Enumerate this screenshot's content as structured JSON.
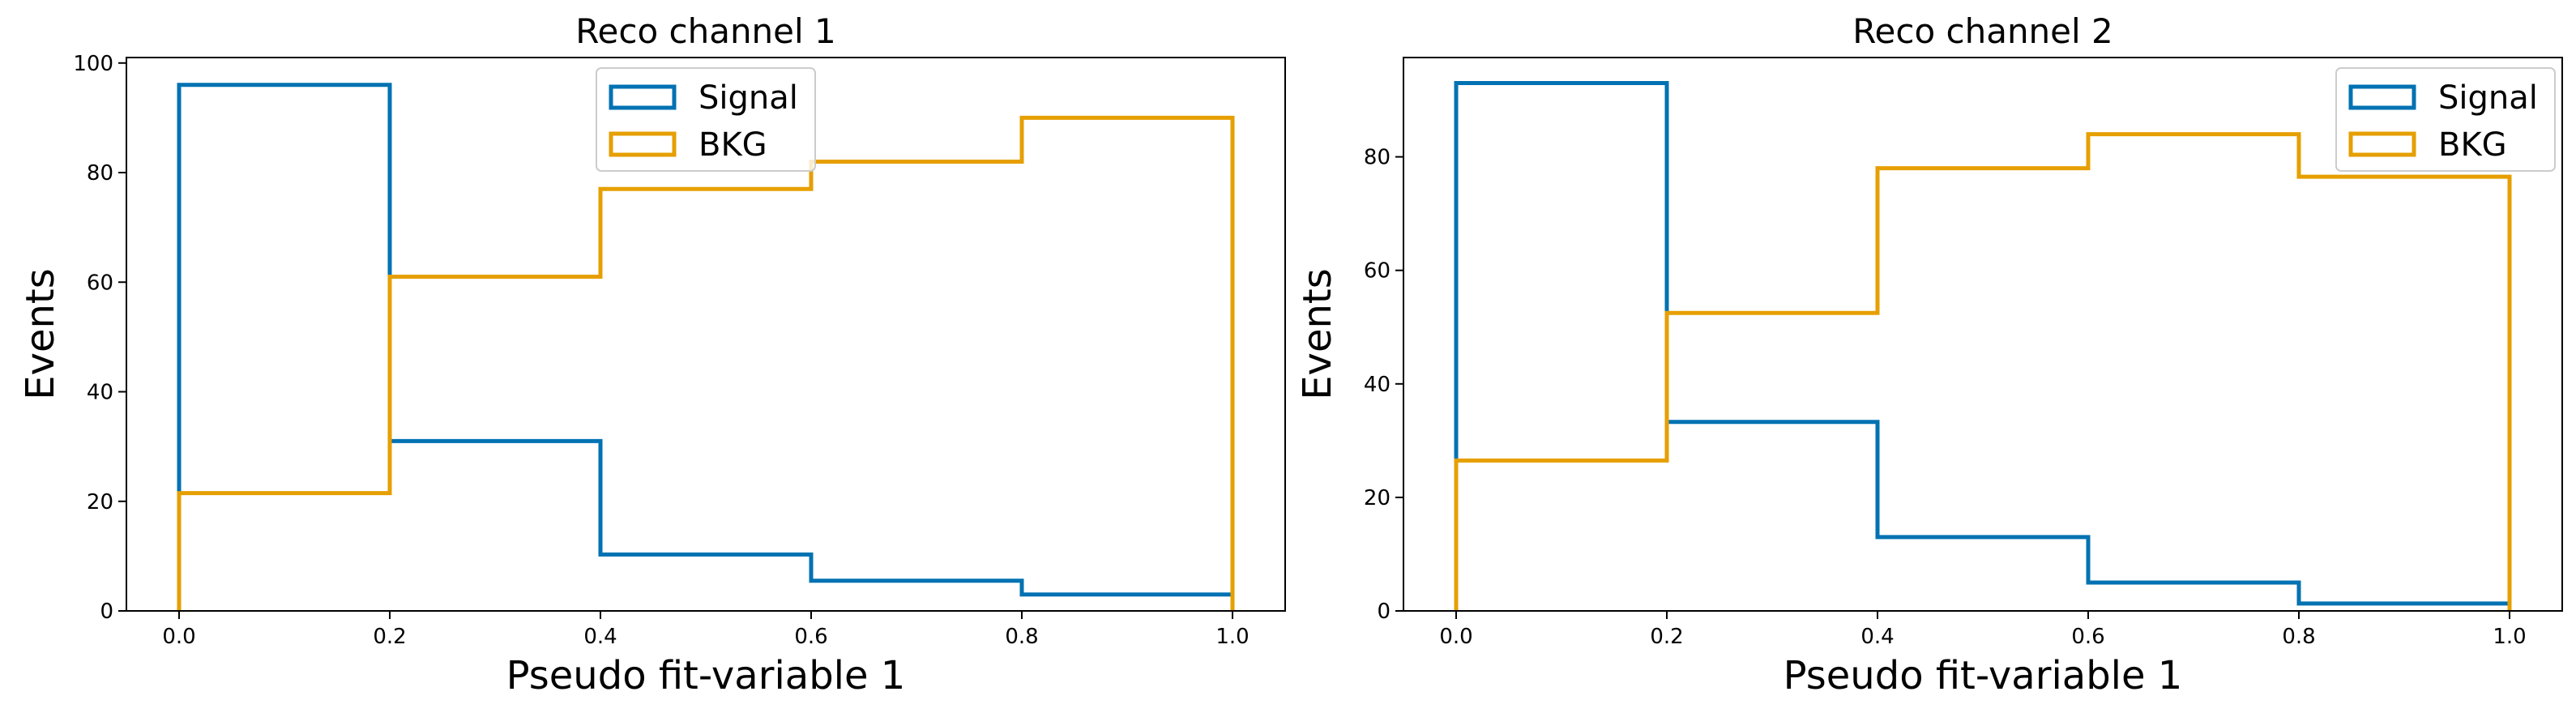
{
  "chart_data": [
    {
      "type": "histogram-step",
      "title": "Reco channel 1",
      "xlabel": "Pseudo fit-variable 1",
      "ylabel": "Events",
      "bin_edges": [
        0.0,
        0.2,
        0.4,
        0.6,
        0.8,
        1.0
      ],
      "xlim": [
        -0.05,
        1.05
      ],
      "ylim": [
        0,
        101
      ],
      "xticks": [
        "0.0",
        "0.2",
        "0.4",
        "0.6",
        "0.8",
        "1.0"
      ],
      "yticks": [
        0,
        20,
        40,
        60,
        80,
        100
      ],
      "legend_position": "upper center",
      "grid": false,
      "series": [
        {
          "name": "Signal",
          "color": "#0072b2",
          "values": [
            96,
            31,
            10.3,
            5.5,
            3.0
          ]
        },
        {
          "name": "BKG",
          "color": "#e69f00",
          "values": [
            21.5,
            61,
            77,
            82,
            90
          ]
        }
      ]
    },
    {
      "type": "histogram-step",
      "title": "Reco channel 2",
      "xlabel": "Pseudo fit-variable 1",
      "ylabel": "Events",
      "bin_edges": [
        0.0,
        0.2,
        0.4,
        0.6,
        0.8,
        1.0
      ],
      "xlim": [
        -0.05,
        1.05
      ],
      "ylim": [
        0,
        97.5
      ],
      "xticks": [
        "0.0",
        "0.2",
        "0.4",
        "0.6",
        "0.8",
        "1.0"
      ],
      "yticks": [
        0,
        20,
        40,
        60,
        80
      ],
      "legend_position": "upper right",
      "grid": false,
      "series": [
        {
          "name": "Signal",
          "color": "#0072b2",
          "values": [
            93,
            33.3,
            13,
            5,
            1.3
          ]
        },
        {
          "name": "BKG",
          "color": "#e69f00",
          "values": [
            26.5,
            52.5,
            78,
            84,
            76.5
          ]
        }
      ]
    }
  ]
}
